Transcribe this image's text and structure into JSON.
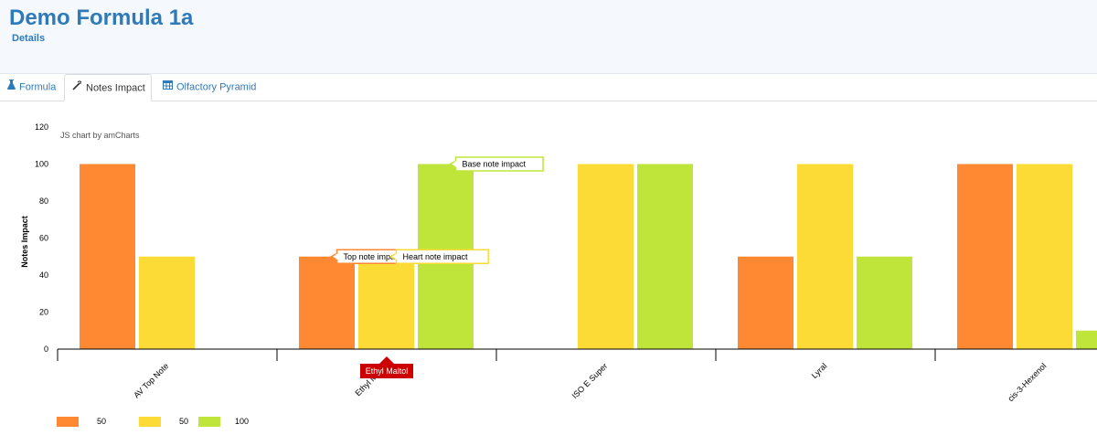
{
  "header": {
    "title": "Demo Formula 1a",
    "breadcrumb": "Details"
  },
  "tabs": [
    {
      "label": "Formula",
      "icon": "flask-icon",
      "active": false
    },
    {
      "label": "Notes Impact",
      "icon": "magic-wand-icon",
      "active": true
    },
    {
      "label": "Olfactory Pyramid",
      "icon": "table-icon",
      "active": false
    }
  ],
  "chart_credit": "JS chart by amCharts",
  "colors": {
    "accent": "#2f7ab9",
    "top": "#ff8833",
    "heart": "#fcdb36",
    "base": "#bfe53b",
    "cursor": "#cc0000"
  },
  "chart_data": {
    "type": "bar",
    "title": "",
    "xlabel": "",
    "ylabel": "Notes Impact",
    "ylim": [
      0,
      120
    ],
    "yticks": [
      0,
      20,
      40,
      60,
      80,
      100,
      120
    ],
    "categories": [
      "AV Top Note",
      "Ethyl Maltol",
      "ISO E Super",
      "Lyral",
      "cis-3-Hexenol"
    ],
    "series": [
      {
        "name": "Top note impact",
        "color": "#ff8833",
        "values": [
          100,
          50,
          0,
          50,
          100
        ]
      },
      {
        "name": "Heart note impact",
        "color": "#fcdb36",
        "values": [
          50,
          50,
          100,
          100,
          100
        ]
      },
      {
        "name": "Base note impact",
        "color": "#bfe53b",
        "values": [
          0,
          100,
          100,
          50,
          10
        ]
      }
    ],
    "cursor_category": "Ethyl Maltol",
    "legend": [
      {
        "color": "#ff8833",
        "value": "50"
      },
      {
        "color": "#fcdb36",
        "value": "50"
      },
      {
        "color": "#bfe53b",
        "value": "100"
      }
    ],
    "legend_position": "bottom-left"
  }
}
